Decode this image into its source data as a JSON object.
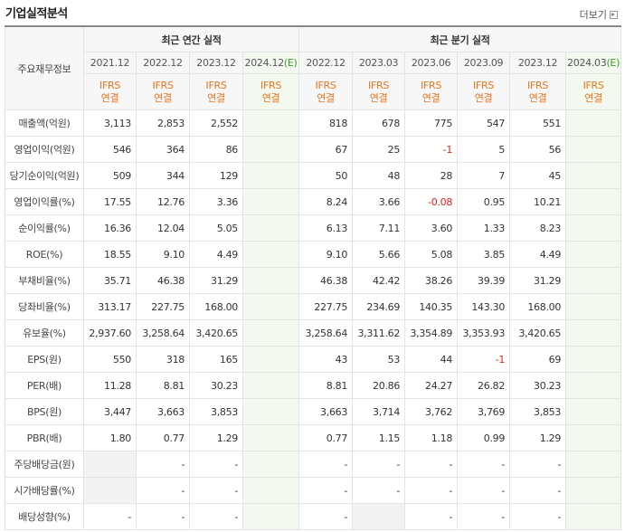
{
  "header": {
    "title": "기업실적분석",
    "more": "더보기"
  },
  "table": {
    "label_header": "주요재무정보",
    "groups": [
      {
        "label": "최근 연간 실적",
        "columns": [
          {
            "period": "2021.12",
            "standard": "IFRS",
            "basis": "연결"
          },
          {
            "period": "2022.12",
            "standard": "IFRS",
            "basis": "연결"
          },
          {
            "period": "2023.12",
            "standard": "IFRS",
            "basis": "연결"
          },
          {
            "period": "2024.12",
            "estimate": "(E)",
            "standard": "IFRS",
            "basis": "연결"
          }
        ]
      },
      {
        "label": "최근 분기 실적",
        "columns": [
          {
            "period": "2022.12",
            "standard": "IFRS",
            "basis": "연결"
          },
          {
            "period": "2023.03",
            "standard": "IFRS",
            "basis": "연결"
          },
          {
            "period": "2023.06",
            "standard": "IFRS",
            "basis": "연결"
          },
          {
            "period": "2023.09",
            "standard": "IFRS",
            "basis": "연결"
          },
          {
            "period": "2023.12",
            "standard": "IFRS",
            "basis": "연결"
          },
          {
            "period": "2024.03",
            "estimate": "(E)",
            "standard": "IFRS",
            "basis": "연결"
          }
        ]
      }
    ],
    "rows": [
      {
        "label": "매출액(억원)",
        "values": [
          "3,113",
          "2,853",
          "2,552",
          null,
          "818",
          "678",
          "775",
          "547",
          "551",
          null
        ]
      },
      {
        "label": "영업이익(억원)",
        "values": [
          "546",
          "364",
          "86",
          null,
          "67",
          "25",
          "-1",
          "5",
          "56",
          null
        ]
      },
      {
        "label": "당기순이익(억원)",
        "values": [
          "509",
          "344",
          "129",
          null,
          "50",
          "48",
          "28",
          "7",
          "45",
          null
        ]
      },
      {
        "label": "영업이익률(%)",
        "values": [
          "17.55",
          "12.76",
          "3.36",
          null,
          "8.24",
          "3.66",
          "-0.08",
          "0.95",
          "10.21",
          null
        ]
      },
      {
        "label": "순이익률(%)",
        "values": [
          "16.36",
          "12.04",
          "5.05",
          null,
          "6.13",
          "7.11",
          "3.60",
          "1.33",
          "8.23",
          null
        ]
      },
      {
        "label": "ROE(%)",
        "values": [
          "18.55",
          "9.10",
          "4.49",
          null,
          "9.10",
          "5.66",
          "5.08",
          "3.85",
          "4.49",
          null
        ]
      },
      {
        "label": "부채비율(%)",
        "values": [
          "35.71",
          "46.38",
          "31.29",
          null,
          "46.38",
          "42.42",
          "38.26",
          "39.39",
          "31.29",
          null
        ]
      },
      {
        "label": "당좌비율(%)",
        "values": [
          "313.17",
          "227.75",
          "168.00",
          null,
          "227.75",
          "234.69",
          "140.35",
          "143.30",
          "168.00",
          null
        ]
      },
      {
        "label": "유보율(%)",
        "values": [
          "2,937.60",
          "3,258.64",
          "3,420.65",
          null,
          "3,258.64",
          "3,311.62",
          "3,354.89",
          "3,353.93",
          "3,420.65",
          null
        ]
      },
      {
        "label": "EPS(원)",
        "values": [
          "550",
          "318",
          "165",
          null,
          "43",
          "53",
          "44",
          "-1",
          "69",
          null
        ]
      },
      {
        "label": "PER(배)",
        "values": [
          "11.28",
          "8.81",
          "30.23",
          null,
          "8.81",
          "20.86",
          "24.27",
          "26.82",
          "30.23",
          null
        ]
      },
      {
        "label": "BPS(원)",
        "values": [
          "3,447",
          "3,663",
          "3,853",
          null,
          "3,663",
          "3,714",
          "3,762",
          "3,769",
          "3,853",
          null
        ]
      },
      {
        "label": "PBR(배)",
        "values": [
          "1.80",
          "0.77",
          "1.29",
          null,
          "0.77",
          "1.15",
          "1.18",
          "0.99",
          "1.29",
          null
        ]
      },
      {
        "label": "주당배당금(원)",
        "values": [
          null,
          "-",
          "-",
          null,
          "-",
          "-",
          "-",
          "-",
          "-",
          null
        ]
      },
      {
        "label": "시가배당률(%)",
        "values": [
          null,
          "-",
          "-",
          null,
          "-",
          "-",
          "-",
          "-",
          "-",
          null
        ]
      },
      {
        "label": "배당성향(%)",
        "values": [
          "-",
          "-",
          "-",
          null,
          "-",
          null,
          "-",
          "-",
          "-",
          null
        ]
      }
    ]
  }
}
